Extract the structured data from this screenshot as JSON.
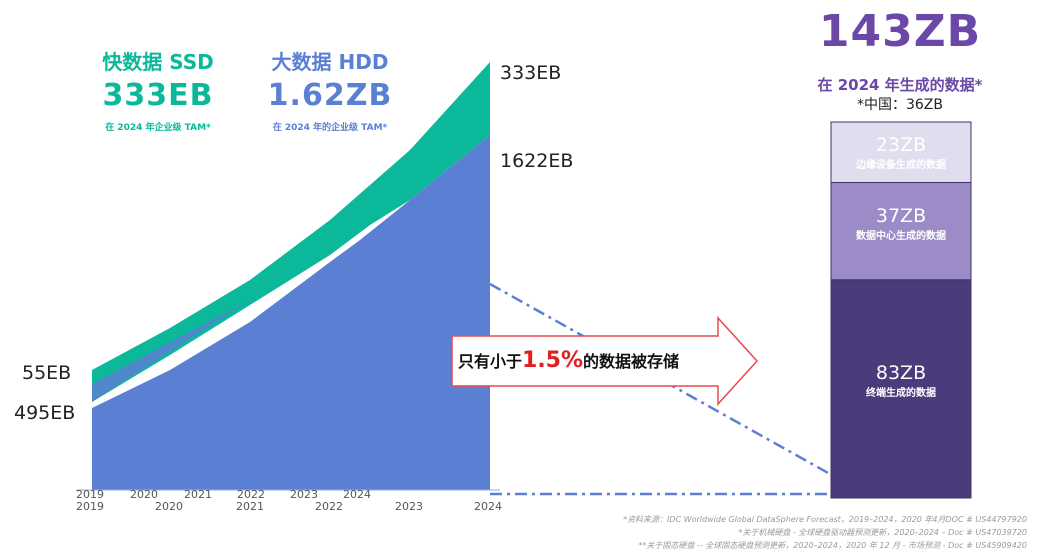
{
  "ssd_title": "快数据 SSD",
  "ssd_value": "333EB",
  "ssd_caption": "在 2024 年企业级 TAM*",
  "hdd_title": "大数据 HDD",
  "hdd_value": "1.62ZB",
  "hdd_caption": "在 2024 年的企业级 TAM*",
  "total_value": "143ZB",
  "total_caption": "在 2024 年生成的数据*",
  "china_caption": "*中国：36ZB",
  "arrow_text_prefix": "只有小于",
  "arrow_text_highlight": "1.5%",
  "arrow_text_suffix": "的数据被存储",
  "notes": [
    "*资料来源：IDC Worldwide Global DataSphere Forecast，2019–2024，2020 年4月DOC # US44797920",
    "*关于机械硬盘 - 全球硬盘驱动器预测更新，2020–2024 – Doc # US47039720",
    "**关于固态硬盘 -- 全球固态硬盘预测更新，2020–2024，2020 年 12 月 - 市场预测 - Doc # US45909420"
  ],
  "colors": {
    "ssd": "#0bb89a",
    "hdd": "#5b7fd3",
    "purple": "#6b48a8",
    "bar_top": "#e2dcef",
    "bar_mid": "#9d8bc7",
    "bar_bottom": "#4a3b7a",
    "arrow_red": "#e02020"
  },
  "chart_data": [
    {
      "type": "area",
      "x": [
        "2019",
        "2020",
        "2021",
        "2022",
        "2023",
        "2024"
      ],
      "x_tick_rows": [
        [
          "2019",
          "2020",
          "2021",
          "2022",
          "2023",
          "2024"
        ],
        [
          "2019",
          "2020",
          "2021",
          "2022",
          "2023",
          "2024"
        ]
      ],
      "series": [
        {
          "name": "HDD",
          "start_label": "495EB",
          "end_label": "1622EB"
        },
        {
          "name": "SSD",
          "start_label": "55EB",
          "end_label": "333EB"
        }
      ]
    },
    {
      "type": "bar",
      "stacked": true,
      "segments": [
        {
          "value": "83ZB",
          "label": "终端生成的数据",
          "amount": 83
        },
        {
          "value": "37ZB",
          "label": "数据中心生成的数据",
          "amount": 37
        },
        {
          "value": "23ZB",
          "label": "边缘设备生成的数据",
          "amount": 23
        }
      ]
    }
  ]
}
